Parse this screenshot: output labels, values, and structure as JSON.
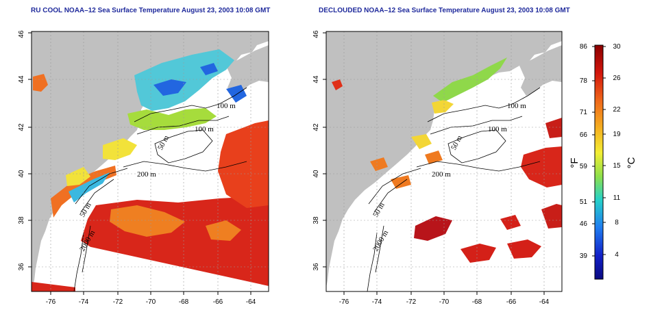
{
  "titles": {
    "left": "RU COOL NOAA–12 Sea Surface Temperature August 23, 2003 10:08 GMT",
    "right": "DECLOUDED NOAA–12 Sea Surface Temperature August 23, 2003 10:08 GMT"
  },
  "axes": {
    "x_ticks": [
      "-76",
      "-74",
      "-72",
      "-70",
      "-68",
      "-66",
      "-64"
    ],
    "y_ticks": [
      "36",
      "38",
      "40",
      "42",
      "44",
      "46"
    ]
  },
  "contour_labels": {
    "left": [
      "100 m",
      "100 m",
      "50 m",
      "200 m",
      "50 m",
      "2000 m"
    ],
    "right": [
      "100 m",
      "100 m",
      "50 m",
      "200 m",
      "50 m",
      "2000 m"
    ]
  },
  "colorbar": {
    "fahrenheit_ticks": [
      "86",
      "78",
      "71",
      "66",
      "59",
      "51",
      "46",
      "39"
    ],
    "celsius_ticks": [
      "30",
      "26",
      "22",
      "19",
      "15",
      "11",
      "8",
      "4"
    ],
    "fahrenheit_unit": "°F",
    "celsius_unit": "°C",
    "gradient_colors": [
      "#8a0000",
      "#d4160c",
      "#f06a1a",
      "#f5b321",
      "#f3ee34",
      "#8fe04a",
      "#26d2c8",
      "#1f7cf0",
      "#1220c8",
      "#0a0a80"
    ]
  },
  "colors": {
    "land": "#c0c0c0",
    "title": "#1f2a9c",
    "grid": "#9a9a9a"
  }
}
